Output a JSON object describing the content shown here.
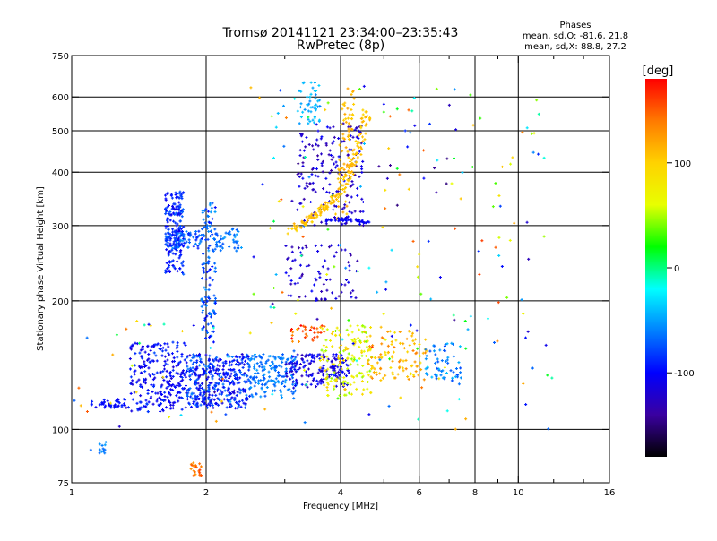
{
  "chart_data": {
    "type": "scatter",
    "title": "Tromsø 20141121 23:34:00–23:35:43",
    "subtitle": "RwPretec (8p)",
    "stats_title": "Phases",
    "stats_o": "mean, sd,O: -81.6, 21.8",
    "stats_x": "mean, sd,X:  88.8, 27.2",
    "xlabel": "Frequency [MHz]",
    "ylabel": "Stationary phase Virtual Height [km]",
    "xscale": "log",
    "yscale": "log",
    "xlim": [
      1,
      16
    ],
    "ylim": [
      75,
      750
    ],
    "xticks": [
      1,
      2,
      4,
      6,
      8,
      10,
      16
    ],
    "yticks": [
      75,
      100,
      200,
      300,
      400,
      500,
      600,
      750
    ],
    "xgrid": [
      2,
      4,
      6,
      8,
      10
    ],
    "xminor": [
      3,
      5,
      7,
      9,
      12,
      14
    ],
    "ygrid": [
      100,
      200,
      300,
      400,
      500,
      600
    ],
    "grid": true,
    "colorbar": {
      "label": "[deg]",
      "ticks": [
        100,
        0,
        -100
      ],
      "range": [
        -180,
        180
      ],
      "colors": [
        "#ff0000",
        "#ff7a00",
        "#ffd200",
        "#e8ff00",
        "#00ff00",
        "#00ffff",
        "#0080ff",
        "#0000ff",
        "#3a00a0",
        "#000000"
      ]
    },
    "clusters": [
      {
        "cx": [
          1.62,
          1.78
        ],
        "cy": [
          230,
          360
        ],
        "cmin": -110,
        "cmax": -70,
        "n": 180
      },
      {
        "cx": [
          1.62,
          1.95
        ],
        "cy": [
          265,
          295
        ],
        "cmin": -95,
        "cmax": -55,
        "n": 80
      },
      {
        "cx": [
          1.95,
          2.1
        ],
        "cy": [
          160,
          340
        ],
        "cmin": -100,
        "cmax": -50,
        "n": 120
      },
      {
        "cx": [
          2.05,
          2.4
        ],
        "cy": [
          260,
          295
        ],
        "cmin": -75,
        "cmax": -50,
        "n": 50
      },
      {
        "cx": [
          1.1,
          1.35
        ],
        "cy": [
          112,
          118
        ],
        "cmin": -110,
        "cmax": -90,
        "n": 40
      },
      {
        "cx": [
          1.35,
          1.8
        ],
        "cy": [
          110,
          160
        ],
        "cmin": -120,
        "cmax": -80,
        "n": 250
      },
      {
        "cx": [
          1.8,
          2.5
        ],
        "cy": [
          112,
          150
        ],
        "cmin": -120,
        "cmax": -60,
        "n": 400
      },
      {
        "cx": [
          2.5,
          3.2
        ],
        "cy": [
          118,
          150
        ],
        "cmin": -75,
        "cmax": -50,
        "n": 160
      },
      {
        "cx": [
          3.0,
          4.2
        ],
        "cy": [
          125,
          150
        ],
        "cmin": -130,
        "cmax": -90,
        "n": 160
      },
      {
        "cx": [
          3.6,
          4.7
        ],
        "cy": [
          120,
          175
        ],
        "cmin": 40,
        "cmax": 110,
        "n": 160
      },
      {
        "cx": [
          4.6,
          6.2
        ],
        "cy": [
          130,
          170
        ],
        "cmin": 80,
        "cmax": 140,
        "n": 100
      },
      {
        "cx": [
          6.2,
          7.5
        ],
        "cy": [
          130,
          160
        ],
        "cmin": -80,
        "cmax": -40,
        "n": 60
      },
      {
        "cx": [
          3.05,
          3.7
        ],
        "cy": [
          160,
          175
        ],
        "cmin": 130,
        "cmax": 180,
        "n": 30
      },
      {
        "cx": [
          3.2,
          4.5
        ],
        "cy": [
          300,
          520
        ],
        "cmin": -140,
        "cmax": -100,
        "n": 170
      },
      {
        "cx": [
          3.2,
          3.6
        ],
        "cy": [
          520,
          650
        ],
        "cmin": -60,
        "cmax": -30,
        "n": 50
      },
      {
        "cx": [
          3.0,
          4.4
        ],
        "cy": [
          200,
          270
        ],
        "cmin": -140,
        "cmax": -100,
        "n": 80
      },
      {
        "cx": [
          1.85,
          1.95
        ],
        "cy": [
          78,
          84
        ],
        "cmin": 120,
        "cmax": 160,
        "n": 20
      },
      {
        "cx": [
          1.1,
          1.2
        ],
        "cy": [
          88,
          94
        ],
        "cmin": -70,
        "cmax": -50,
        "n": 12
      },
      {
        "cx": [
          2.5,
          12.5
        ],
        "cy": [
          180,
          640
        ],
        "cmin": -150,
        "cmax": 160,
        "n": 150
      },
      {
        "cx": [
          1.0,
          12.0
        ],
        "cy": [
          100,
          180
        ],
        "cmin": -150,
        "cmax": 160,
        "n": 90
      }
    ],
    "curves": [
      {
        "x": [
          3.1,
          3.4,
          3.7,
          4.0,
          4.2,
          4.4,
          4.6
        ],
        "y": [
          290,
          310,
          330,
          360,
          400,
          460,
          560
        ],
        "cmin": 95,
        "cmax": 120,
        "n": 170,
        "jitter": 0.008
      },
      {
        "x": [
          4.0,
          4.05,
          4.1,
          4.15,
          4.2
        ],
        "y": [
          300,
          380,
          460,
          540,
          640
        ],
        "cmin": 100,
        "cmax": 125,
        "n": 70,
        "jitter": 0.01
      },
      {
        "x": [
          3.7,
          4.0,
          4.3,
          4.6
        ],
        "y": [
          308,
          310,
          309,
          306
        ],
        "cmin": -110,
        "cmax": -95,
        "n": 50,
        "jitter": 0.004
      }
    ]
  }
}
